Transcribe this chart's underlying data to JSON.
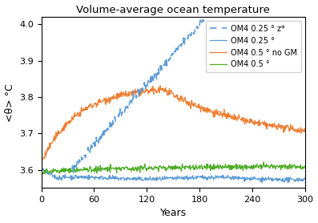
{
  "title": "Volume-average ocean temperature",
  "xlabel": "Years",
  "ylabel": "<θ> °C",
  "xlim": [
    0,
    300
  ],
  "ylim": [
    3.55,
    4.02
  ],
  "yticks": [
    3.6,
    3.7,
    3.8,
    3.9,
    4.0
  ],
  "xticks": [
    0,
    60,
    120,
    180,
    240,
    300
  ],
  "legend": [
    {
      "label": "OM4 0.25 ° z*",
      "color": "#5b9bd5",
      "linestyle": "--"
    },
    {
      "label": "OM4 0.25 °",
      "color": "#5b9bd5",
      "linestyle": "-"
    },
    {
      "label": "OM4 0.5 ° no GM",
      "color": "#ed7d31",
      "linestyle": "-"
    },
    {
      "label": "OM4 0.5 °",
      "color": "#4dac26",
      "linestyle": "-"
    }
  ],
  "seed": 42,
  "n_points": 600
}
